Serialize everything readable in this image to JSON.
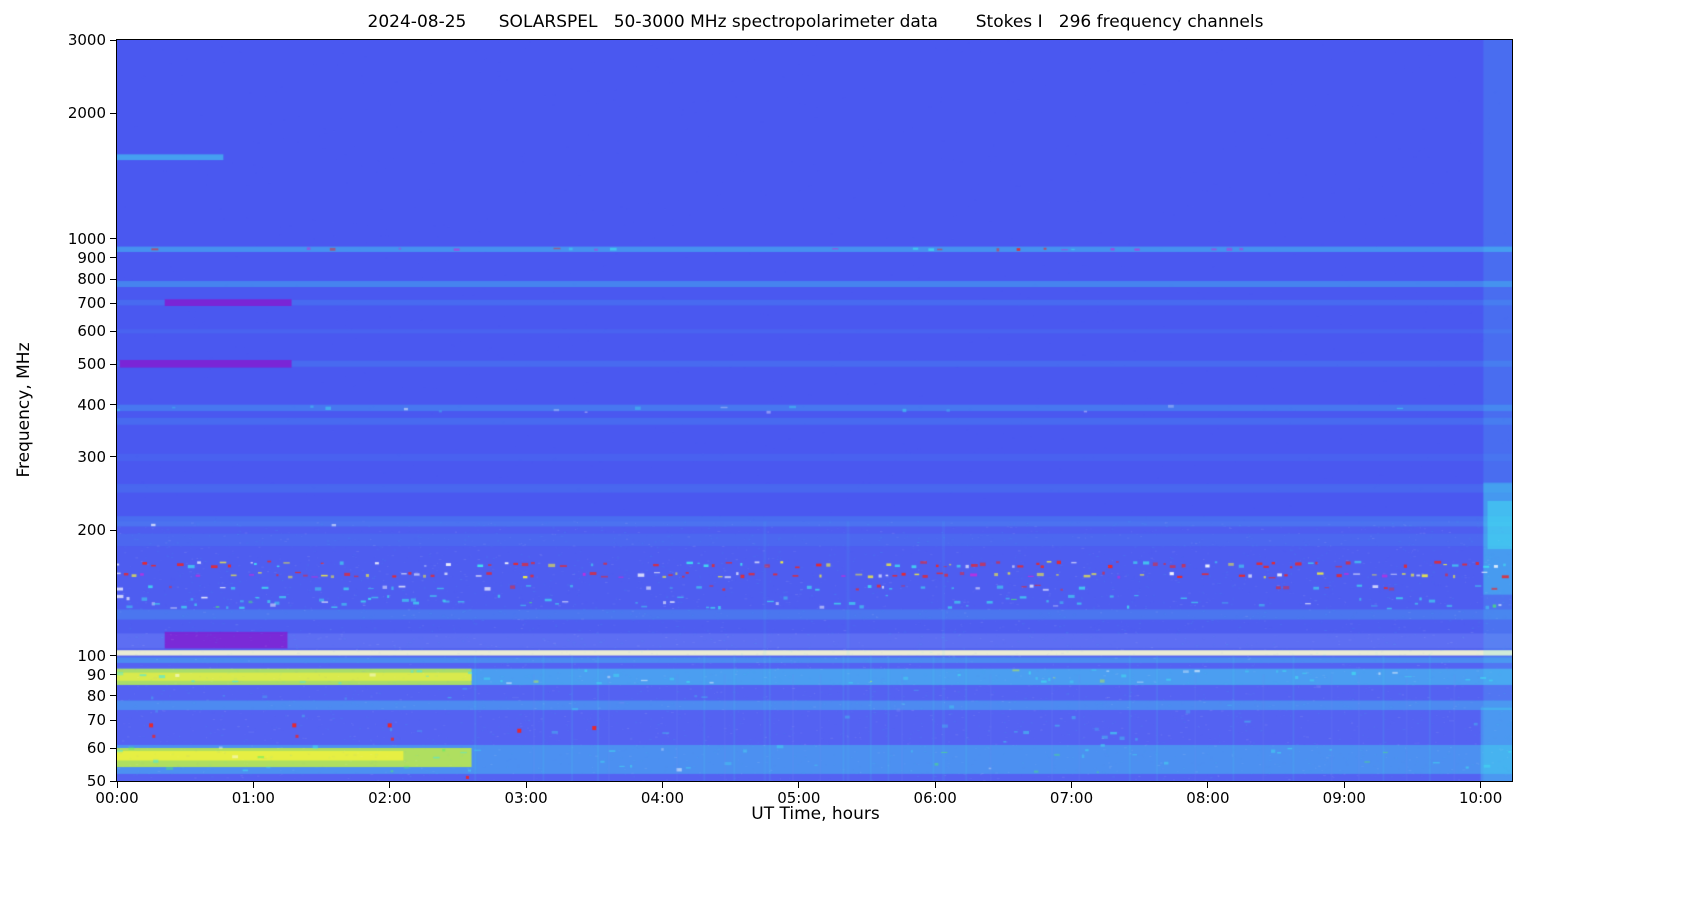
{
  "chart_data": {
    "type": "heatmap",
    "title": "2024-08-25      SOLARSPEL   50-3000 MHz spectropolarimeter data       Stokes I   296 frequency channels",
    "xlabel": "UT Time, hours",
    "ylabel": "Frequency, MHz",
    "colormap_note": "rainbow: blue=low intensity, cyan/green/yellow=moderate, red/white=strong RFI",
    "x_range_hours": [
      0,
      10.23
    ],
    "x_ticks": [
      "00:00",
      "01:00",
      "02:00",
      "03:00",
      "04:00",
      "05:00",
      "06:00",
      "07:00",
      "08:00",
      "09:00",
      "10:00"
    ],
    "y_scale": "log",
    "y_range_mhz": [
      50,
      3000
    ],
    "y_ticks": [
      "3000",
      "2000",
      "1000",
      "900",
      "800",
      "700",
      "600",
      "500",
      "400",
      "300",
      "200",
      "100",
      "90",
      "80",
      "70",
      "60",
      "50"
    ],
    "background": "bg",
    "palette": {
      "bg": "#4a58f0",
      "cyan": "#40e8f0",
      "ltblue": "#7b8ef8",
      "green": "#4ef06a",
      "ygreen": "#c8f23c",
      "yellow": "#f8f43a",
      "white": "#ffffff",
      "paleyellow": "#fcfcd0",
      "red": "#ee2525",
      "magenta": "#c42be0",
      "purple": "#7d22d4"
    },
    "features": {
      "rects": [
        {
          "f": [
            50,
            100
          ],
          "t": [
            0,
            10.23
          ],
          "c": "ltblue",
          "a": 0.2
        },
        {
          "f": [
            100,
            210
          ],
          "t": [
            0,
            10.23
          ],
          "c": "ltblue",
          "a": 0.09
        },
        {
          "f": [
            1545,
            1595
          ],
          "t": [
            0,
            0.78
          ],
          "c": "cyan",
          "a": 0.5
        },
        {
          "f": [
            930,
            958
          ],
          "t": [
            0,
            10.23
          ],
          "c": "cyan",
          "a": 0.4
        },
        {
          "f": [
            766,
            792
          ],
          "t": [
            0,
            10.23
          ],
          "c": "cyan",
          "a": 0.3
        },
        {
          "f": [
            692,
            714
          ],
          "t": [
            0,
            10.23
          ],
          "c": "cyan",
          "a": 0.13
        },
        {
          "f": [
            690,
            716
          ],
          "t": [
            0.35,
            1.28
          ],
          "c": "purple",
          "a": 0.95
        },
        {
          "f": [
            593,
            607
          ],
          "t": [
            0,
            10.23
          ],
          "c": "cyan",
          "a": 0.08
        },
        {
          "f": [
            493,
            510
          ],
          "t": [
            0,
            10.23
          ],
          "c": "cyan",
          "a": 0.13
        },
        {
          "f": [
            491,
            512
          ],
          "t": [
            0.02,
            1.28
          ],
          "c": "purple",
          "a": 0.95
        },
        {
          "f": [
            386,
            400
          ],
          "t": [
            0,
            10.23
          ],
          "c": "cyan",
          "a": 0.22
        },
        {
          "f": [
            358,
            372
          ],
          "t": [
            0,
            10.23
          ],
          "c": "cyan",
          "a": 0.13
        },
        {
          "f": [
            293,
            305
          ],
          "t": [
            0,
            10.23
          ],
          "c": "cyan",
          "a": 0.07
        },
        {
          "f": [
            246,
            258
          ],
          "t": [
            0,
            10.23
          ],
          "c": "cyan",
          "a": 0.1
        },
        {
          "f": [
            204,
            216
          ],
          "t": [
            0,
            10.23
          ],
          "c": "cyan",
          "a": 0.15
        },
        {
          "f": [
            183,
            196
          ],
          "t": [
            0,
            10.23
          ],
          "c": "cyan",
          "a": 0.08
        },
        {
          "f": [
            122,
            129
          ],
          "t": [
            0,
            10.23
          ],
          "c": "cyan",
          "a": 0.18
        },
        {
          "f": [
            104,
            113
          ],
          "t": [
            0,
            10.23
          ],
          "c": "ltblue",
          "a": 0.35
        },
        {
          "f": [
            104,
            114
          ],
          "t": [
            0.35,
            1.25
          ],
          "c": "purple",
          "a": 0.9
        },
        {
          "f": [
            100,
            103
          ],
          "t": [
            0,
            10.23
          ],
          "c": "paleyellow",
          "a": 0.9
        },
        {
          "f": [
            96,
            99
          ],
          "t": [
            0,
            10.23
          ],
          "c": "cyan",
          "a": 0.3
        },
        {
          "f": [
            85,
            93
          ],
          "t": [
            0,
            10.23
          ],
          "c": "cyan",
          "a": 0.45
        },
        {
          "f": [
            85,
            93
          ],
          "t": [
            0,
            2.6
          ],
          "c": "ygreen",
          "a": 0.75
        },
        {
          "f": [
            87,
            91
          ],
          "t": [
            0,
            2.6
          ],
          "c": "yellow",
          "a": 0.6
        },
        {
          "f": [
            74,
            78
          ],
          "t": [
            0,
            10.23
          ],
          "c": "cyan",
          "a": 0.3
        },
        {
          "f": [
            52,
            61
          ],
          "t": [
            0,
            10.23
          ],
          "c": "cyan",
          "a": 0.35
        },
        {
          "f": [
            54,
            60
          ],
          "t": [
            0,
            2.6
          ],
          "c": "ygreen",
          "a": 0.8
        },
        {
          "f": [
            56,
            59
          ],
          "t": [
            0,
            2.1
          ],
          "c": "yellow",
          "a": 0.75
        },
        {
          "f": [
            50,
            3000
          ],
          "t": [
            10.02,
            10.23
          ],
          "c": "cyan",
          "a": 0.15
        },
        {
          "f": [
            140,
            260
          ],
          "t": [
            10.02,
            10.23
          ],
          "c": "cyan",
          "a": 0.35
        },
        {
          "f": [
            180,
            235
          ],
          "t": [
            10.05,
            10.23
          ],
          "c": "cyan",
          "a": 0.45
        },
        {
          "f": [
            50,
            75
          ],
          "t": [
            10.0,
            10.23
          ],
          "c": "cyan",
          "a": 0.3
        }
      ],
      "speckle_bands": [
        {
          "f": [
            162,
            169
          ],
          "t": [
            0,
            10.23
          ],
          "density": 0.5,
          "colors": [
            [
              "red",
              0.5
            ],
            [
              "white",
              0.15
            ],
            [
              "yellow",
              0.15
            ],
            [
              "cyan",
              0.2
            ]
          ]
        },
        {
          "f": [
            153,
            159
          ],
          "t": [
            0,
            10.23
          ],
          "density": 0.55,
          "colors": [
            [
              "red",
              0.4
            ],
            [
              "yellow",
              0.25
            ],
            [
              "white",
              0.2
            ],
            [
              "magenta",
              0.15
            ]
          ]
        },
        {
          "f": [
            143,
            148
          ],
          "t": [
            0,
            10.23
          ],
          "density": 0.3,
          "colors": [
            [
              "cyan",
              0.5
            ],
            [
              "white",
              0.25
            ],
            [
              "red",
              0.25
            ]
          ],
          "a": 0.8
        },
        {
          "f": [
            129,
            140
          ],
          "t": [
            0,
            10.23
          ],
          "density": 0.4,
          "colors": [
            [
              "cyan",
              0.75
            ],
            [
              "white",
              0.15
            ],
            [
              "green",
              0.1
            ]
          ],
          "a": 0.75
        },
        {
          "f": [
            129,
            140
          ],
          "t": [
            0,
            2.6
          ],
          "density": 0.5,
          "colors": [
            [
              "cyan",
              0.7
            ],
            [
              "white",
              0.3
            ]
          ],
          "a": 0.85
        },
        {
          "f": [
            935,
            955
          ],
          "t": [
            0,
            10.23
          ],
          "density": 0.12,
          "colors": [
            [
              "magenta",
              0.5
            ],
            [
              "cyan",
              0.3
            ],
            [
              "red",
              0.2
            ]
          ],
          "a": 0.7
        },
        {
          "f": [
            938,
            952
          ],
          "t": [
            6.45,
            6.8
          ],
          "density": 0.7,
          "colors": [
            [
              "red",
              1
            ]
          ]
        },
        {
          "f": [
            204,
            214
          ],
          "t": [
            0.25,
            1.6
          ],
          "density": 0.12,
          "colors": [
            [
              "white",
              0.6
            ],
            [
              "cyan",
              0.4
            ]
          ],
          "a": 0.7
        },
        {
          "f": [
            85,
            93
          ],
          "t": [
            0,
            10.23
          ],
          "density": 0.3,
          "colors": [
            [
              "cyan",
              0.6
            ],
            [
              "white",
              0.25
            ],
            [
              "ygreen",
              0.15
            ]
          ],
          "a": 0.6
        },
        {
          "f": [
            52,
            61
          ],
          "t": [
            0,
            10.23
          ],
          "density": 0.25,
          "colors": [
            [
              "cyan",
              0.6
            ],
            [
              "green",
              0.25
            ],
            [
              "white",
              0.15
            ]
          ],
          "a": 0.55
        },
        {
          "f": [
            61,
            85
          ],
          "t": [
            0,
            10.23
          ],
          "density": 0.18,
          "colors": [
            [
              "cyan",
              0.7
            ],
            [
              "ltblue",
              0.3
            ]
          ],
          "a": 0.4
        },
        {
          "f": [
            1100,
            1250
          ],
          "t": [
            7.7,
            8.3
          ],
          "density": 0.05,
          "colors": [
            [
              "cyan",
              1
            ]
          ],
          "a": 0.5
        },
        {
          "f": [
            380,
            400
          ],
          "t": [
            0,
            10.23
          ],
          "density": 0.08,
          "colors": [
            [
              "cyan",
              0.7
            ],
            [
              "white",
              0.3
            ]
          ],
          "a": 0.5
        },
        {
          "f": [
            58,
            68
          ],
          "t": [
            7.1,
            7.55
          ],
          "density": 0.5,
          "colors": [
            [
              "cyan",
              1
            ]
          ],
          "a": 0.6
        },
        {
          "f": [
            60,
            67
          ],
          "t": [
            6.5,
            6.75
          ],
          "density": 0.45,
          "colors": [
            [
              "cyan",
              1
            ]
          ],
          "a": 0.55
        }
      ],
      "vstreaks": [
        {
          "times": [
            2.62,
            3.12,
            3.33,
            3.52,
            4.3,
            4.52,
            4.78,
            5.32,
            5.52,
            5.65,
            5.98,
            6.22,
            7.42,
            7.62,
            8.18,
            8.62,
            9.28,
            9.62
          ],
          "f": [
            50,
            100
          ],
          "c": "cyan",
          "a": 0.1,
          "w": 2
        },
        {
          "times": [
            4.74,
            5.35,
            6.05
          ],
          "f": [
            50,
            210
          ],
          "c": "cyan",
          "a": 0.07,
          "w": 3
        },
        {
          "times": [
            3.05,
            3.6,
            4.1,
            4.45,
            4.95,
            5.15,
            5.75,
            6.4,
            6.85,
            7.05,
            7.9,
            8.4,
            8.9,
            9.1,
            9.45,
            9.8
          ],
          "f": [
            50,
            90
          ],
          "c": "ltblue",
          "a": 0.12,
          "w": 2
        }
      ],
      "dots": [
        {
          "points": [
            [
              0.25,
              68
            ],
            [
              1.3,
              68
            ],
            [
              2.0,
              68
            ],
            [
              2.95,
              66
            ],
            [
              3.5,
              67
            ]
          ],
          "c": "red",
          "size": 4,
          "a": 0.95
        },
        {
          "points": [
            [
              0.27,
              64
            ],
            [
              1.32,
              64
            ],
            [
              2.02,
              63
            ]
          ],
          "c": "red",
          "size": 3,
          "a": 0.8
        },
        {
          "points": [
            [
              2.57,
              51
            ]
          ],
          "c": "red",
          "size": 3,
          "a": 0.9
        }
      ],
      "noise": [
        {
          "f": [
            50,
            210
          ],
          "count": 6000,
          "colors": [
            "ltblue",
            "cyan",
            "white"
          ],
          "aMin": 0.03,
          "aMax": 0.12
        },
        {
          "f": [
            210,
            3000
          ],
          "count": 1200,
          "colors": [
            "ltblue"
          ],
          "aMin": 0.02,
          "aMax": 0.05
        }
      ]
    }
  }
}
